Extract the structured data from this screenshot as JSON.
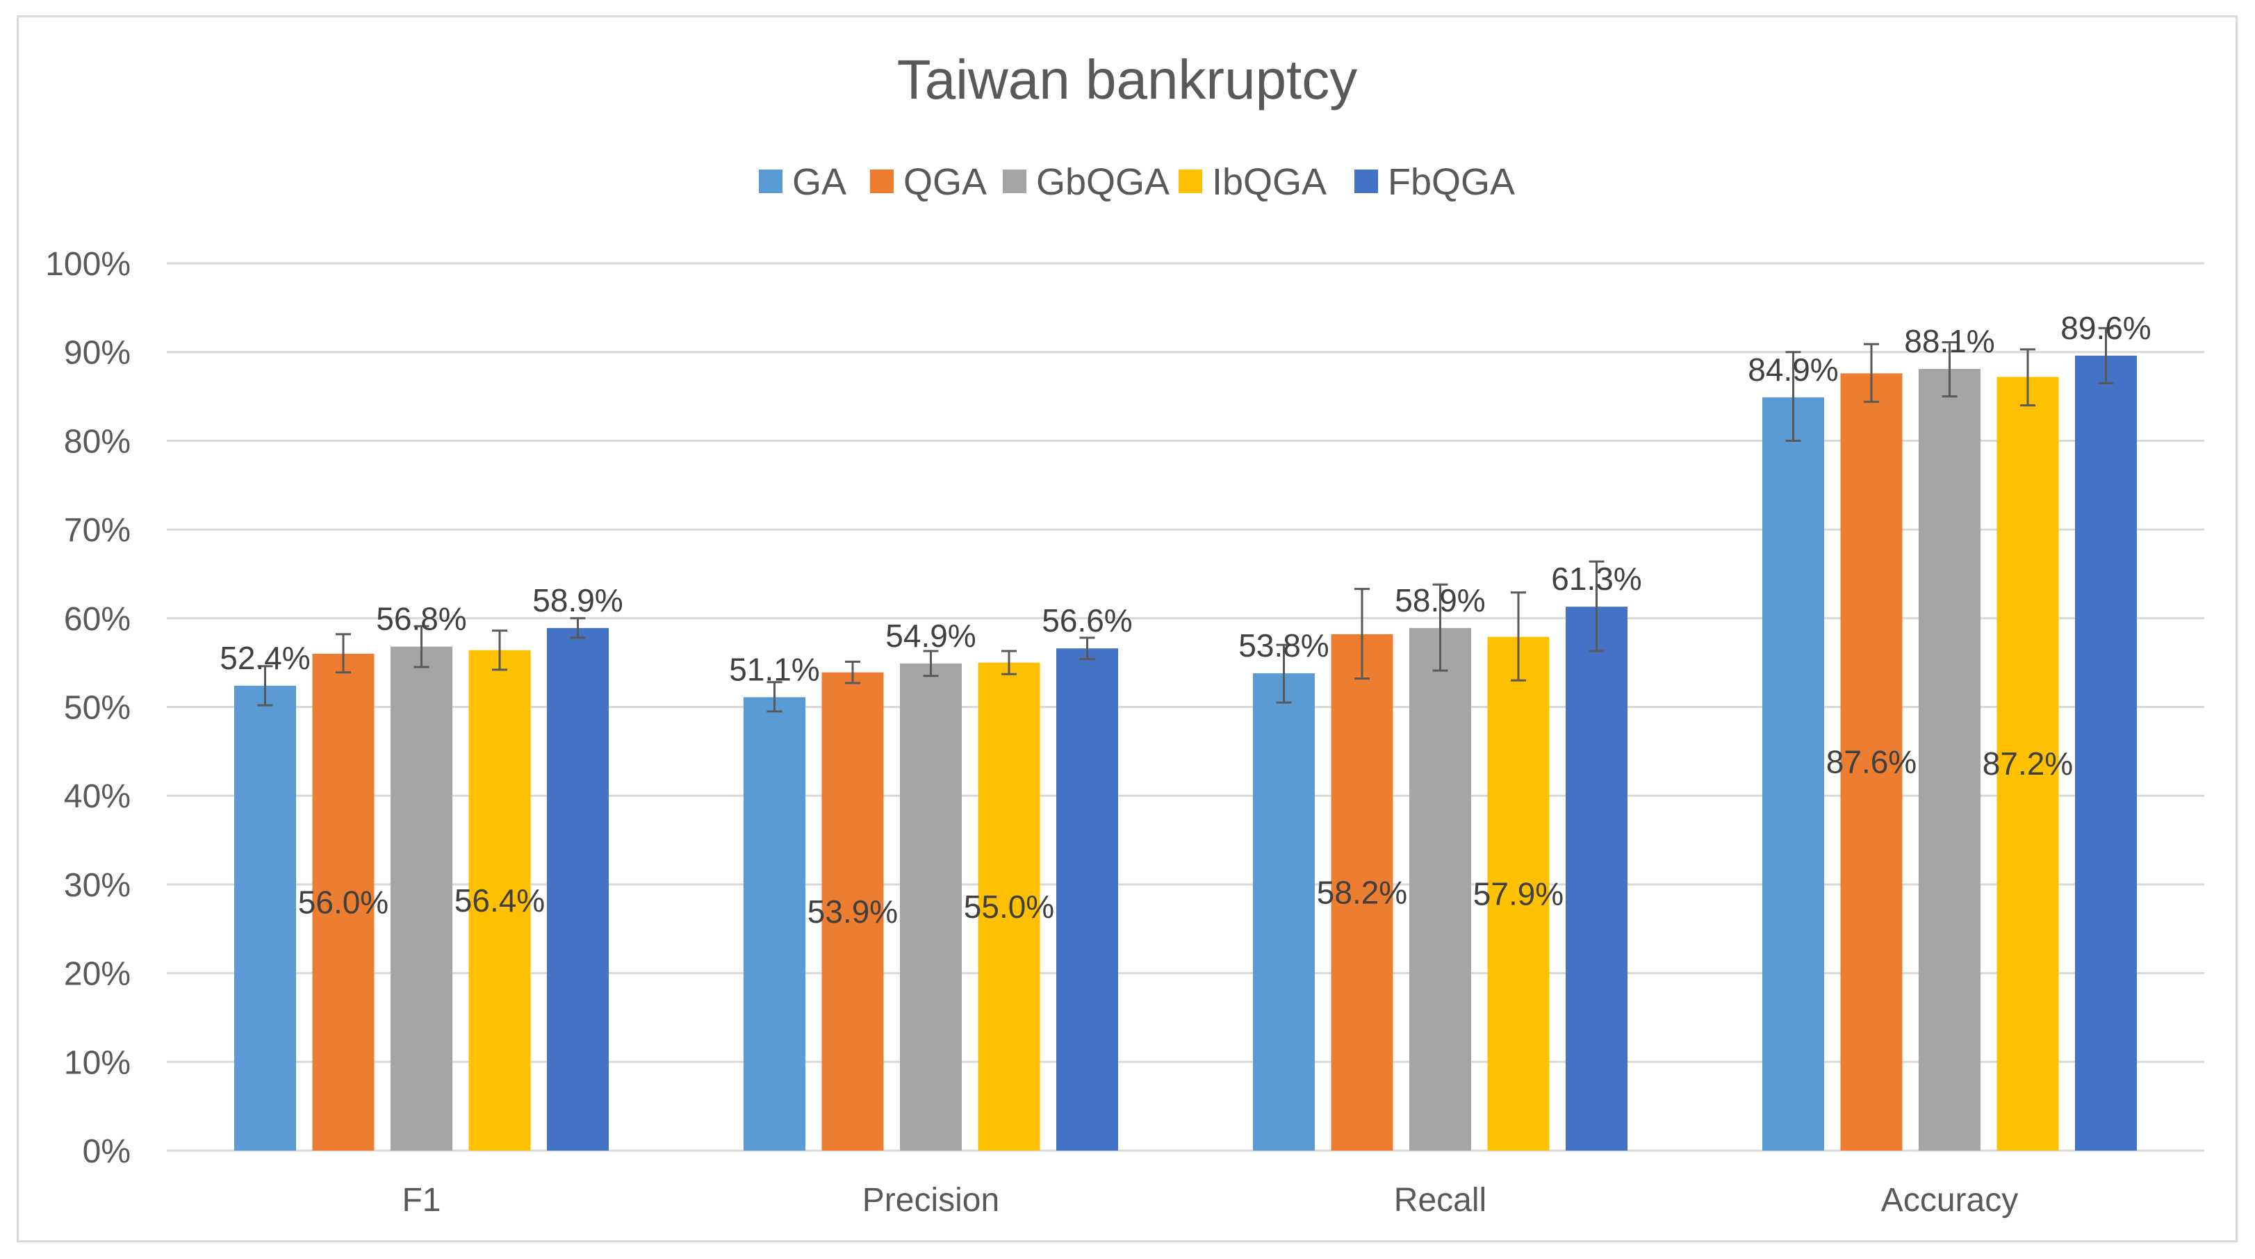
{
  "chart_data": {
    "type": "bar",
    "title": "Taiwan bankruptcy",
    "xlabel": "",
    "ylabel": "",
    "categories": [
      "F1",
      "Precision",
      "Recall",
      "Accuracy"
    ],
    "ylim": [
      0,
      100
    ],
    "y_ticks": [
      "0%",
      "10%",
      "20%",
      "30%",
      "40%",
      "50%",
      "60%",
      "70%",
      "80%",
      "90%",
      "100%"
    ],
    "y_tick_values": [
      0,
      10,
      20,
      30,
      40,
      50,
      60,
      70,
      80,
      90,
      100
    ],
    "grid": true,
    "legend_position": "top",
    "series": [
      {
        "name": "GA",
        "color": "#5B9BD5",
        "values": [
          52.4,
          51.1,
          53.8,
          84.9
        ],
        "error_low": [
          50.2,
          49.5,
          50.5,
          80.0
        ],
        "error_high": [
          54.6,
          52.8,
          57.0,
          90.0
        ],
        "labels": [
          "52.4%",
          "51.1%",
          "53.8%",
          "84.9%"
        ]
      },
      {
        "name": "QGA",
        "color": "#ED7D31",
        "values": [
          56.0,
          53.9,
          58.2,
          87.6
        ],
        "error_low": [
          53.9,
          52.7,
          53.2,
          84.4
        ],
        "error_high": [
          58.2,
          55.1,
          63.3,
          90.9
        ],
        "labels": [
          "56.0%",
          "53.9%",
          "58.2%",
          "87.6%"
        ]
      },
      {
        "name": "GbQGA",
        "color": "#A5A5A5",
        "values": [
          56.8,
          54.9,
          58.9,
          88.1
        ],
        "error_low": [
          54.5,
          53.5,
          54.1,
          85.0
        ],
        "error_high": [
          59.1,
          56.3,
          63.8,
          91.1
        ],
        "labels": [
          "56.8%",
          "54.9%",
          "58.9%",
          "88.1%"
        ]
      },
      {
        "name": "IbQGA",
        "color": "#FFC000",
        "values": [
          56.4,
          55.0,
          57.9,
          87.2
        ],
        "error_low": [
          54.2,
          53.7,
          53.0,
          84.0
        ],
        "error_high": [
          58.6,
          56.3,
          62.9,
          90.3
        ],
        "labels": [
          "56.4%",
          "55.0%",
          "57.9%",
          "87.2%"
        ]
      },
      {
        "name": "FbQGA",
        "color": "#4472C4",
        "values": [
          58.9,
          56.6,
          61.3,
          89.6
        ],
        "error_low": [
          57.8,
          55.4,
          56.3,
          86.5
        ],
        "error_high": [
          60.0,
          57.8,
          66.4,
          92.7
        ],
        "labels": [
          "58.9%",
          "56.6%",
          "61.3%",
          "89.6%"
        ]
      }
    ]
  }
}
